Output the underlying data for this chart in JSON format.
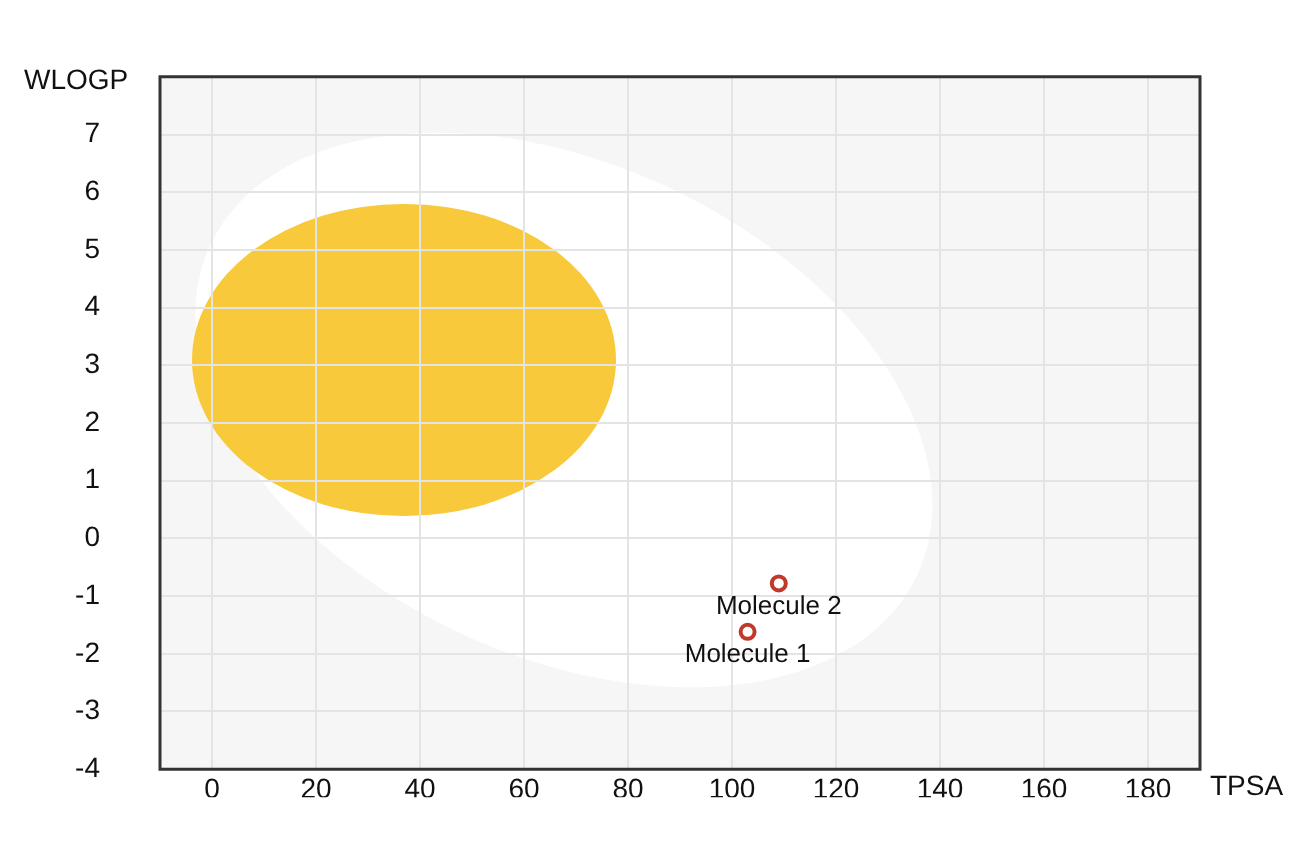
{
  "chart_data": {
    "type": "scatter",
    "xlabel": "TPSA",
    "ylabel": "WLOGP",
    "xlim": [
      -10,
      190
    ],
    "xticks": [
      0,
      20,
      40,
      60,
      80,
      100,
      120,
      140,
      160,
      180
    ],
    "ylim": [
      -4,
      8
    ],
    "yticks": [
      -4,
      -3,
      -2,
      -1,
      0,
      1,
      2,
      3,
      4,
      5,
      6,
      7
    ],
    "grid": true,
    "legend": false,
    "marker": "circle",
    "series": [
      {
        "name": "Molecule 1",
        "color": "#c0392b",
        "x": [
          103
        ],
        "values": [
          -1.62
        ]
      },
      {
        "name": "Molecule 2",
        "color": "#c0392b",
        "x": [
          109
        ],
        "values": [
          -0.78
        ]
      }
    ]
  }
}
